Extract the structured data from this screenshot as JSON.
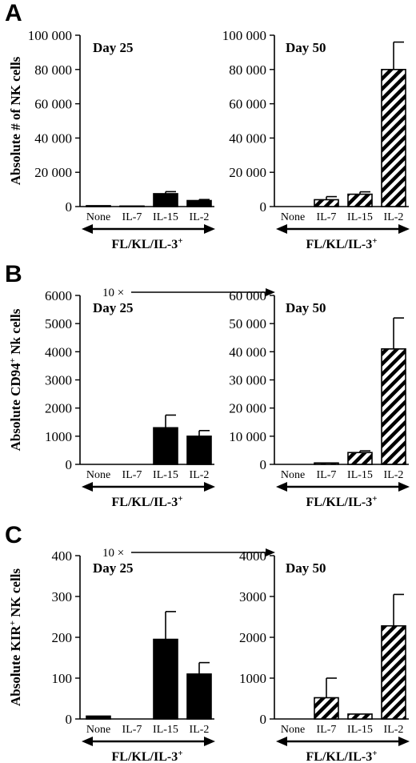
{
  "chart_data": [
    {
      "panel": "A",
      "type": "bar",
      "day": "Day 25",
      "ylabel": "Absolute # of NK cells",
      "categories": [
        "None",
        "IL-7",
        "IL-15",
        "IL-2"
      ],
      "values": [
        500,
        300,
        7500,
        3500
      ],
      "errors": [
        0,
        0,
        1200,
        600
      ],
      "fill": "solid",
      "yticks": [
        "0",
        "20 000",
        "40 000",
        "60 000",
        "80 000",
        "100 000"
      ],
      "ylim": [
        0,
        100000
      ],
      "cytokine": "FL/KL/IL-3",
      "cytokine_sup": "+"
    },
    {
      "panel": "A",
      "type": "bar",
      "day": "Day 50",
      "categories": [
        "None",
        "IL-7",
        "IL-15",
        "IL-2"
      ],
      "values": [
        0,
        4000,
        7200,
        80000
      ],
      "errors": [
        0,
        1800,
        1400,
        16000
      ],
      "fill": "hatched",
      "yticks": [
        "0",
        "20 000",
        "40 000",
        "60 000",
        "80 000",
        "100 000"
      ],
      "ylim": [
        0,
        100000
      ],
      "cytokine": "FL/KL/IL-3",
      "cytokine_sup": "+"
    },
    {
      "panel": "B",
      "type": "bar",
      "day": "Day 25",
      "ylabel": "Absolute CD94",
      "ylabel_sup": "+",
      "ylabel_rest": " Nk cells",
      "categories": [
        "None",
        "IL-7",
        "IL-15",
        "IL-2"
      ],
      "values": [
        0,
        0,
        1300,
        1000
      ],
      "errors": [
        0,
        0,
        450,
        200
      ],
      "fill": "solid",
      "yticks": [
        "0",
        "1000",
        "2000",
        "3000",
        "4000",
        "5000",
        "6000"
      ],
      "ylim": [
        0,
        6000
      ],
      "annotation": "10 ×",
      "cytokine": "FL/KL/IL-3",
      "cytokine_sup": "+"
    },
    {
      "panel": "B",
      "type": "bar",
      "day": "Day 50",
      "categories": [
        "None",
        "IL-7",
        "IL-15",
        "IL-2"
      ],
      "values": [
        0,
        500,
        4200,
        41000
      ],
      "errors": [
        0,
        0,
        600,
        11000
      ],
      "fill": "hatched",
      "yticks": [
        "0",
        "10 000",
        "20 000",
        "30 000",
        "40 000",
        "50 000",
        "60 000"
      ],
      "ylim": [
        0,
        60000
      ],
      "cytokine": "FL/KL/IL-3",
      "cytokine_sup": "+"
    },
    {
      "panel": "C",
      "type": "bar",
      "day": "Day 25",
      "ylabel": "Absolute KIR",
      "ylabel_sup": "+",
      "ylabel_rest": " NK cells",
      "categories": [
        "None",
        "IL-7",
        "IL-15",
        "IL-2"
      ],
      "values": [
        7,
        0,
        195,
        110
      ],
      "errors": [
        0,
        0,
        68,
        28
      ],
      "fill": "solid",
      "yticks": [
        "0",
        "100",
        "200",
        "300",
        "400"
      ],
      "ylim": [
        0,
        400
      ],
      "annotation": "10 ×",
      "cytokine": "FL/KL/IL-3",
      "cytokine_sup": "+"
    },
    {
      "panel": "C",
      "type": "bar",
      "day": "Day 50",
      "categories": [
        "None",
        "IL-7",
        "IL-15",
        "IL-2"
      ],
      "values": [
        0,
        520,
        120,
        2280
      ],
      "errors": [
        0,
        480,
        0,
        770
      ],
      "fill": "hatched",
      "yticks": [
        "0",
        "1000",
        "2000",
        "3000",
        "4000"
      ],
      "ylim": [
        0,
        4000
      ],
      "cytokine": "FL/KL/IL-3",
      "cytokine_sup": "+"
    }
  ]
}
